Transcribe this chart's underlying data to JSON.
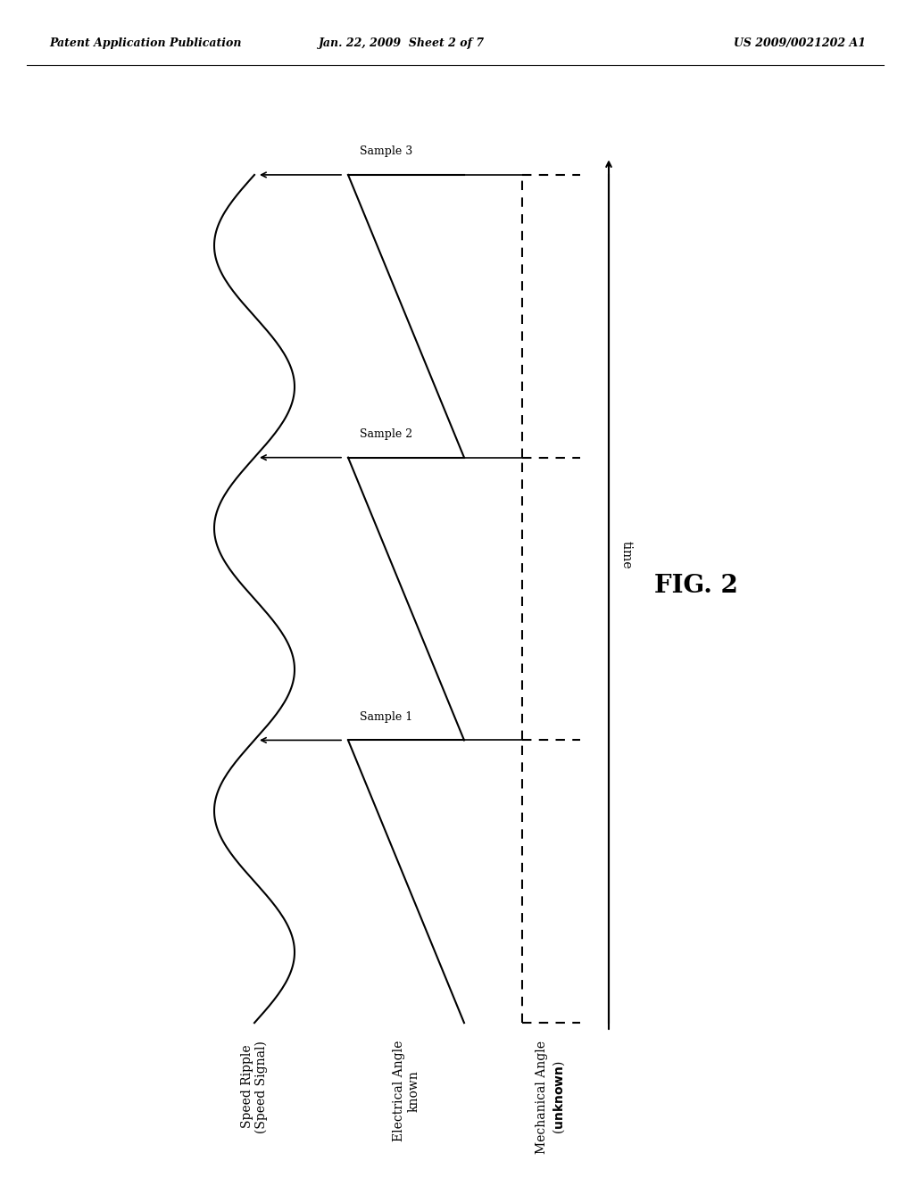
{
  "header_left": "Patent Application Publication",
  "header_center": "Jan. 22, 2009  Sheet 2 of 7",
  "header_right": "US 2009/0021202 A1",
  "fig_label": "FIG. 2",
  "label1": "Speed Ripple\n(Speed Signal)",
  "label2": "Electrical Angle\nknown",
  "label3": "Mechanical Angle\n(unknown)",
  "time_label": "time",
  "sample1": "Sample 1",
  "sample2": "Sample 2",
  "sample3": "Sample 3",
  "bg_color": "#ffffff",
  "line_color": "#000000"
}
